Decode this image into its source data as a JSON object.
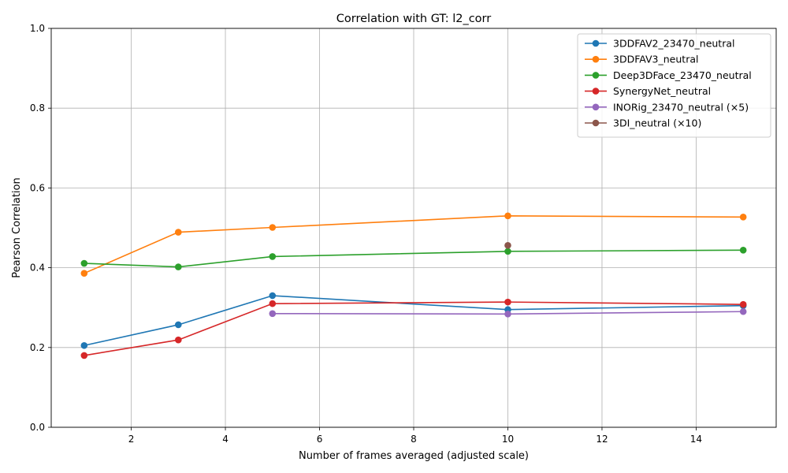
{
  "chart_data": {
    "type": "line",
    "title": "Correlation with GT: l2_corr",
    "xlabel": "Number of frames averaged (adjusted scale)",
    "ylabel": "Pearson Correlation",
    "xlim": [
      0.3,
      15.7
    ],
    "ylim": [
      0.0,
      1.0
    ],
    "xticks": [
      2,
      4,
      6,
      8,
      10,
      12,
      14
    ],
    "yticks": [
      0.0,
      0.2,
      0.4,
      0.6,
      0.8,
      1.0
    ],
    "xtick_labels": [
      "2",
      "4",
      "6",
      "8",
      "10",
      "12",
      "14"
    ],
    "ytick_labels": [
      "0.0",
      "0.2",
      "0.4",
      "0.6",
      "0.8",
      "1.0"
    ],
    "grid": true,
    "legend_position": "top-right",
    "series": [
      {
        "name": "3DDFAV2_23470_neutral",
        "color": "#1f77b4",
        "x": [
          1,
          3,
          5,
          10,
          15
        ],
        "y": [
          0.205,
          0.257,
          0.33,
          0.295,
          0.305
        ]
      },
      {
        "name": "3DDFAV3_neutral",
        "color": "#ff7f0e",
        "x": [
          1,
          3,
          5,
          10,
          15
        ],
        "y": [
          0.386,
          0.489,
          0.501,
          0.53,
          0.527
        ]
      },
      {
        "name": "Deep3DFace_23470_neutral",
        "color": "#2ca02c",
        "x": [
          1,
          3,
          5,
          10,
          15
        ],
        "y": [
          0.411,
          0.402,
          0.428,
          0.441,
          0.444
        ]
      },
      {
        "name": "SynergyNet_neutral",
        "color": "#d62728",
        "x": [
          1,
          3,
          5,
          10,
          15
        ],
        "y": [
          0.18,
          0.219,
          0.31,
          0.314,
          0.308
        ]
      },
      {
        "name": "INORig_23470_neutral (×5)",
        "color": "#9467bd",
        "x": [
          5,
          10,
          15
        ],
        "y": [
          0.285,
          0.284,
          0.29
        ]
      },
      {
        "name": "3DI_neutral (×10)",
        "color": "#8c564b",
        "x": [
          10
        ],
        "y": [
          0.456
        ]
      }
    ]
  }
}
